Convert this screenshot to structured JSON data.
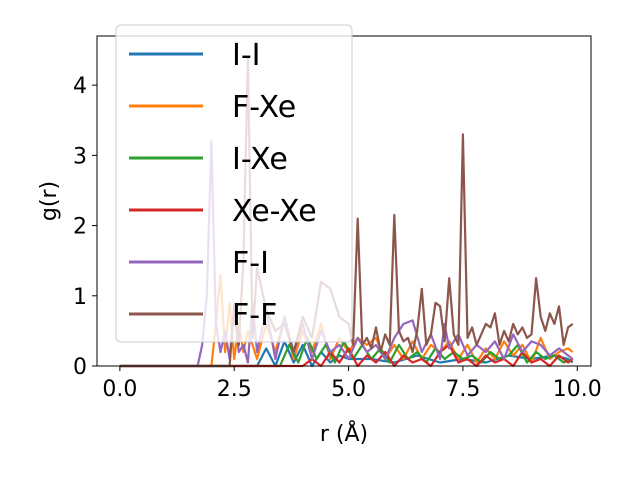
{
  "chart_data": {
    "type": "line",
    "xlabel": "r (Å)",
    "ylabel": "g(r)",
    "xlim": [
      -0.5,
      10.3
    ],
    "ylim": [
      0,
      4.7
    ],
    "xticks": [
      0.0,
      2.5,
      5.0,
      7.5,
      10.0
    ],
    "xtick_labels": [
      "0.0",
      "2.5",
      "5.0",
      "7.5",
      "10.0"
    ],
    "yticks": [
      0,
      1,
      2,
      3,
      4
    ],
    "ytick_labels": [
      "0",
      "1",
      "2",
      "3",
      "4"
    ],
    "grid": false,
    "legend_position": "top-left",
    "series": [
      {
        "name": "I-I",
        "color": "#1f77b4",
        "x": [
          0.0,
          3.0,
          3.2,
          3.4,
          3.6,
          3.8,
          4.0,
          4.2,
          4.4,
          4.6,
          4.8,
          5.0,
          5.5,
          6.0,
          6.5,
          7.0,
          7.5,
          8.0,
          8.5,
          9.0,
          9.5,
          9.8,
          9.9
        ],
        "y": [
          0,
          0,
          0.25,
          0.0,
          0.35,
          0.05,
          0.3,
          0.0,
          0.2,
          0.05,
          0.15,
          0.1,
          0.1,
          0.05,
          0.15,
          0.05,
          0.1,
          0.05,
          0.15,
          0.1,
          0.15,
          0.1,
          0.05
        ]
      },
      {
        "name": "F-Xe",
        "color": "#ff7f0e",
        "x": [
          0.0,
          2.0,
          2.1,
          2.2,
          2.3,
          2.4,
          2.5,
          2.6,
          2.7,
          2.8,
          3.0,
          3.2,
          3.4,
          3.6,
          3.8,
          4.0,
          4.2,
          4.4,
          4.6,
          4.8,
          5.0,
          5.2,
          5.4,
          5.6,
          5.8,
          6.0,
          6.2,
          6.4,
          6.6,
          6.8,
          7.0,
          7.2,
          7.4,
          7.6,
          7.8,
          8.0,
          8.2,
          8.4,
          8.6,
          8.8,
          9.0,
          9.2,
          9.4,
          9.6,
          9.8,
          9.9
        ],
        "y": [
          0,
          0,
          0.6,
          1.3,
          0.2,
          0.9,
          0.1,
          0.6,
          0.2,
          0.5,
          0.1,
          0.6,
          0.2,
          0.7,
          0.1,
          0.5,
          0.2,
          0.6,
          0.1,
          0.4,
          0.2,
          0.4,
          0.3,
          0.4,
          0.1,
          0.3,
          0.1,
          0.35,
          0.1,
          0.3,
          0.2,
          0.35,
          0.1,
          0.3,
          0.05,
          0.25,
          0.1,
          0.35,
          0.15,
          0.3,
          0.05,
          0.4,
          0.1,
          0.2,
          0.25,
          0.2
        ]
      },
      {
        "name": "I-Xe",
        "color": "#2ca02c",
        "x": [
          0.0,
          3.5,
          3.7,
          3.9,
          4.1,
          4.3,
          4.5,
          4.7,
          4.9,
          5.1,
          5.3,
          5.5,
          5.7,
          5.9,
          6.1,
          6.3,
          6.5,
          6.7,
          6.9,
          7.1,
          7.3,
          7.5,
          7.7,
          7.9,
          8.1,
          8.3,
          8.5,
          8.7,
          8.9,
          9.1,
          9.3,
          9.5,
          9.7,
          9.9
        ],
        "y": [
          0,
          0,
          0.3,
          0.05,
          0.4,
          0.1,
          0.3,
          0.05,
          0.35,
          0.1,
          0.3,
          0.1,
          0.25,
          0.05,
          0.3,
          0.1,
          0.2,
          0.05,
          0.25,
          0.1,
          0.2,
          0.1,
          0.15,
          0.05,
          0.2,
          0.1,
          0.15,
          0.3,
          0.05,
          0.2,
          0.1,
          0.15,
          0.05,
          0.1
        ]
      },
      {
        "name": "Xe-Xe",
        "color": "#d62728",
        "x": [
          0.0,
          4.0,
          4.2,
          4.4,
          4.6,
          4.8,
          5.0,
          5.2,
          5.4,
          5.6,
          5.8,
          6.0,
          6.2,
          6.4,
          6.6,
          6.8,
          7.0,
          7.2,
          7.4,
          7.6,
          7.8,
          8.0,
          8.2,
          8.4,
          8.6,
          8.8,
          9.0,
          9.2,
          9.4,
          9.6,
          9.8,
          9.9
        ],
        "y": [
          0,
          0,
          0.1,
          0.0,
          0.2,
          0.05,
          0.25,
          0.0,
          0.15,
          0.05,
          0.2,
          0.0,
          0.15,
          0.05,
          0.1,
          0.0,
          0.2,
          0.3,
          0.05,
          0.1,
          0.0,
          0.15,
          0.05,
          0.1,
          0.0,
          0.2,
          0.05,
          0.1,
          0.0,
          0.15,
          0.05,
          0.1
        ]
      },
      {
        "name": "F-I",
        "color": "#9467bd",
        "x": [
          0.0,
          1.7,
          1.8,
          1.9,
          2.0,
          2.1,
          2.2,
          2.3,
          2.4,
          2.5,
          2.6,
          2.7,
          2.8,
          2.9,
          3.0,
          3.2,
          3.4,
          3.6,
          3.8,
          4.0,
          4.2,
          4.4,
          4.6,
          4.8,
          5.0,
          5.2,
          5.4,
          5.6,
          5.8,
          6.0,
          6.2,
          6.4,
          6.6,
          6.8,
          7.0,
          7.1,
          7.2,
          7.4,
          7.6,
          7.8,
          8.0,
          8.2,
          8.4,
          8.6,
          8.8,
          9.0,
          9.2,
          9.4,
          9.6,
          9.8,
          9.9
        ],
        "y": [
          0,
          0,
          0.3,
          1.0,
          3.2,
          0.6,
          0.2,
          0.5,
          0.1,
          0.8,
          0.2,
          0.3,
          0.05,
          0.9,
          0.2,
          0.8,
          0.1,
          0.7,
          0.2,
          0.6,
          0.1,
          0.5,
          0.2,
          0.3,
          0.1,
          0.4,
          0.2,
          0.3,
          0.1,
          0.4,
          0.6,
          0.65,
          0.2,
          0.45,
          0.1,
          0.6,
          0.25,
          0.45,
          0.15,
          0.3,
          0.2,
          0.35,
          0.1,
          0.45,
          0.2,
          0.35,
          0.3,
          0.15,
          0.25,
          0.15,
          0.1
        ]
      },
      {
        "name": "F-F",
        "color": "#8c564b",
        "x": [
          0.0,
          2.4,
          2.5,
          2.6,
          2.7,
          2.8,
          2.9,
          3.0,
          3.2,
          3.4,
          3.6,
          3.8,
          4.0,
          4.2,
          4.4,
          4.6,
          4.8,
          5.0,
          5.1,
          5.2,
          5.3,
          5.4,
          5.5,
          5.6,
          5.7,
          5.8,
          5.9,
          6.0,
          6.1,
          6.2,
          6.3,
          6.4,
          6.5,
          6.6,
          6.7,
          6.8,
          6.9,
          7.0,
          7.1,
          7.2,
          7.3,
          7.4,
          7.5,
          7.6,
          7.7,
          7.8,
          7.9,
          8.0,
          8.1,
          8.2,
          8.3,
          8.4,
          8.5,
          8.6,
          8.7,
          8.8,
          8.9,
          9.0,
          9.1,
          9.2,
          9.3,
          9.4,
          9.5,
          9.6,
          9.7,
          9.8,
          9.9
        ],
        "y": [
          0,
          0,
          0.9,
          0.3,
          1.5,
          4.4,
          0.4,
          1.4,
          0.8,
          0.5,
          0.6,
          0.2,
          0.7,
          0.4,
          1.2,
          1.1,
          0.7,
          0.6,
          0.3,
          2.1,
          0.3,
          0.4,
          0.25,
          0.55,
          0.2,
          0.45,
          0.3,
          2.15,
          0.5,
          0.35,
          0.4,
          0.2,
          0.5,
          1.1,
          0.3,
          0.45,
          0.9,
          0.85,
          0.35,
          1.25,
          0.45,
          0.3,
          3.3,
          0.4,
          0.55,
          0.3,
          0.45,
          0.6,
          0.55,
          0.75,
          0.3,
          0.5,
          0.35,
          0.6,
          0.45,
          0.55,
          0.4,
          0.45,
          1.25,
          0.7,
          0.5,
          0.75,
          0.6,
          0.85,
          0.3,
          0.55,
          0.6
        ]
      }
    ]
  }
}
